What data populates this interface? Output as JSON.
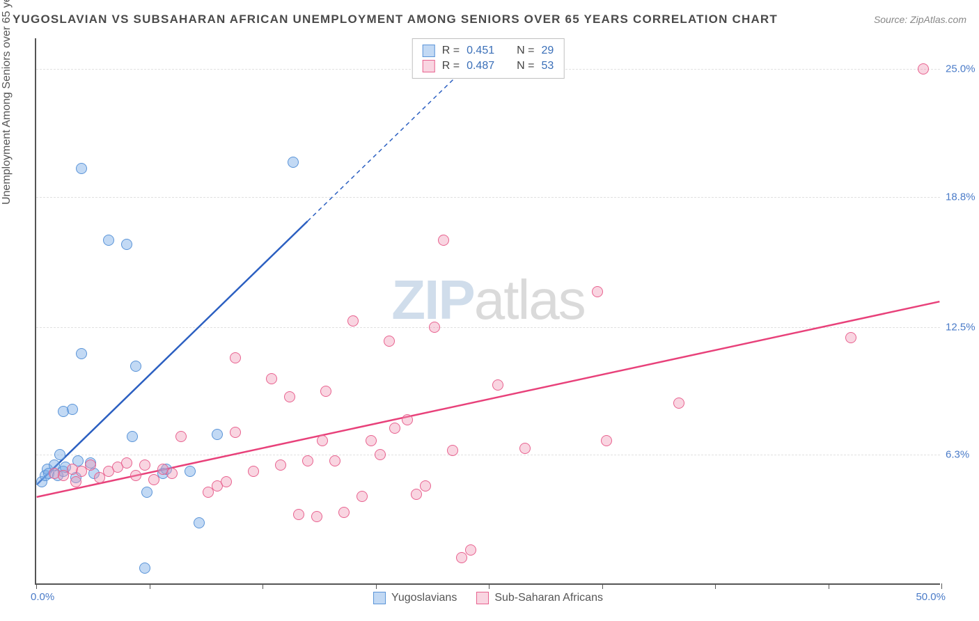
{
  "title": "YUGOSLAVIAN VS SUBSAHARAN AFRICAN UNEMPLOYMENT AMONG SENIORS OVER 65 YEARS CORRELATION CHART",
  "source": "Source: ZipAtlas.com",
  "y_axis_label": "Unemployment Among Seniors over 65 years",
  "watermark_zip": "ZIP",
  "watermark_atlas": "atlas",
  "chart": {
    "type": "scatter",
    "background_color": "#ffffff",
    "grid_color": "#e0e0e0",
    "axis_color": "#555555",
    "xlim": [
      0,
      50
    ],
    "ylim": [
      0,
      26.5
    ],
    "x_ticks": [
      0,
      6.25,
      12.5,
      18.75,
      25,
      31.25,
      37.5,
      43.75,
      50
    ],
    "x_tick_labels": {
      "left": "0.0%",
      "right": "50.0%"
    },
    "y_gridlines": [
      6.3,
      12.5,
      18.8,
      25.0
    ],
    "y_tick_labels": [
      "6.3%",
      "12.5%",
      "18.8%",
      "25.0%"
    ],
    "point_radius": 8,
    "series": [
      {
        "name": "Yugoslavians",
        "fill_color": "rgba(120,170,230,0.45)",
        "stroke_color": "#5a94d8",
        "r_value": "0.451",
        "n_value": "29",
        "line_color": "#2b5fc1",
        "line_width": 2.5,
        "line_solid_end_x": 15,
        "line_start": {
          "x": 0,
          "y": 4.8
        },
        "line_end": {
          "x": 26,
          "y": 27
        },
        "points": [
          {
            "x": 0.3,
            "y": 5.0
          },
          {
            "x": 0.5,
            "y": 5.3
          },
          {
            "x": 0.6,
            "y": 5.6
          },
          {
            "x": 0.7,
            "y": 5.4
          },
          {
            "x": 1.0,
            "y": 5.8
          },
          {
            "x": 1.2,
            "y": 5.3
          },
          {
            "x": 1.3,
            "y": 6.3
          },
          {
            "x": 1.5,
            "y": 5.5
          },
          {
            "x": 1.5,
            "y": 8.4
          },
          {
            "x": 1.6,
            "y": 5.7
          },
          {
            "x": 2.0,
            "y": 8.5
          },
          {
            "x": 2.2,
            "y": 5.2
          },
          {
            "x": 2.3,
            "y": 6.0
          },
          {
            "x": 2.5,
            "y": 11.2
          },
          {
            "x": 3.0,
            "y": 5.9
          },
          {
            "x": 3.2,
            "y": 5.4
          },
          {
            "x": 4.0,
            "y": 16.7
          },
          {
            "x": 5.0,
            "y": 16.5
          },
          {
            "x": 5.3,
            "y": 7.2
          },
          {
            "x": 5.5,
            "y": 10.6
          },
          {
            "x": 6.0,
            "y": 0.8
          },
          {
            "x": 6.1,
            "y": 4.5
          },
          {
            "x": 7.0,
            "y": 5.4
          },
          {
            "x": 7.2,
            "y": 5.6
          },
          {
            "x": 8.5,
            "y": 5.5
          },
          {
            "x": 9.0,
            "y": 3.0
          },
          {
            "x": 10.0,
            "y": 7.3
          },
          {
            "x": 14.2,
            "y": 20.5
          },
          {
            "x": 2.5,
            "y": 20.2
          }
        ]
      },
      {
        "name": "Sub-Saharan Africans",
        "fill_color": "rgba(240,150,180,0.4)",
        "stroke_color": "#e8628f",
        "r_value": "0.487",
        "n_value": "53",
        "line_color": "#e8417a",
        "line_width": 2.5,
        "line_solid_end_x": 50,
        "line_start": {
          "x": 0,
          "y": 4.2
        },
        "line_end": {
          "x": 50,
          "y": 13.7
        },
        "points": [
          {
            "x": 1.0,
            "y": 5.4
          },
          {
            "x": 1.5,
            "y": 5.3
          },
          {
            "x": 2.0,
            "y": 5.6
          },
          {
            "x": 2.2,
            "y": 5.0
          },
          {
            "x": 2.5,
            "y": 5.5
          },
          {
            "x": 3.0,
            "y": 5.8
          },
          {
            "x": 3.5,
            "y": 5.2
          },
          {
            "x": 4.0,
            "y": 5.5
          },
          {
            "x": 4.5,
            "y": 5.7
          },
          {
            "x": 5.0,
            "y": 5.9
          },
          {
            "x": 5.5,
            "y": 5.3
          },
          {
            "x": 6.0,
            "y": 5.8
          },
          {
            "x": 6.5,
            "y": 5.1
          },
          {
            "x": 7.0,
            "y": 5.6
          },
          {
            "x": 7.5,
            "y": 5.4
          },
          {
            "x": 8.0,
            "y": 7.2
          },
          {
            "x": 9.5,
            "y": 4.5
          },
          {
            "x": 10.0,
            "y": 4.8
          },
          {
            "x": 10.5,
            "y": 5.0
          },
          {
            "x": 11.0,
            "y": 7.4
          },
          {
            "x": 11.0,
            "y": 11.0
          },
          {
            "x": 12.0,
            "y": 5.5
          },
          {
            "x": 13.0,
            "y": 10.0
          },
          {
            "x": 13.5,
            "y": 5.8
          },
          {
            "x": 14.0,
            "y": 9.1
          },
          {
            "x": 14.5,
            "y": 3.4
          },
          {
            "x": 15.0,
            "y": 6.0
          },
          {
            "x": 15.5,
            "y": 3.3
          },
          {
            "x": 15.8,
            "y": 7.0
          },
          {
            "x": 16.0,
            "y": 9.4
          },
          {
            "x": 16.5,
            "y": 6.0
          },
          {
            "x": 17.0,
            "y": 3.5
          },
          {
            "x": 17.5,
            "y": 12.8
          },
          {
            "x": 18.0,
            "y": 4.3
          },
          {
            "x": 18.5,
            "y": 7.0
          },
          {
            "x": 19.0,
            "y": 6.3
          },
          {
            "x": 19.5,
            "y": 11.8
          },
          {
            "x": 19.8,
            "y": 7.6
          },
          {
            "x": 20.5,
            "y": 8.0
          },
          {
            "x": 21.0,
            "y": 4.4
          },
          {
            "x": 21.5,
            "y": 4.8
          },
          {
            "x": 22.0,
            "y": 12.5
          },
          {
            "x": 22.5,
            "y": 16.7
          },
          {
            "x": 23.0,
            "y": 6.5
          },
          {
            "x": 23.5,
            "y": 1.3
          },
          {
            "x": 24.0,
            "y": 1.7
          },
          {
            "x": 25.5,
            "y": 9.7
          },
          {
            "x": 27.0,
            "y": 6.6
          },
          {
            "x": 31.0,
            "y": 14.2
          },
          {
            "x": 31.5,
            "y": 7.0
          },
          {
            "x": 35.5,
            "y": 8.8
          },
          {
            "x": 45.0,
            "y": 12.0
          },
          {
            "x": 49.0,
            "y": 25.0
          }
        ]
      }
    ]
  },
  "legend_top": {
    "r_label": "R  =",
    "n_label": "N  ="
  },
  "legend_bottom": [
    {
      "label": "Yugoslavians"
    },
    {
      "label": "Sub-Saharan Africans"
    }
  ]
}
